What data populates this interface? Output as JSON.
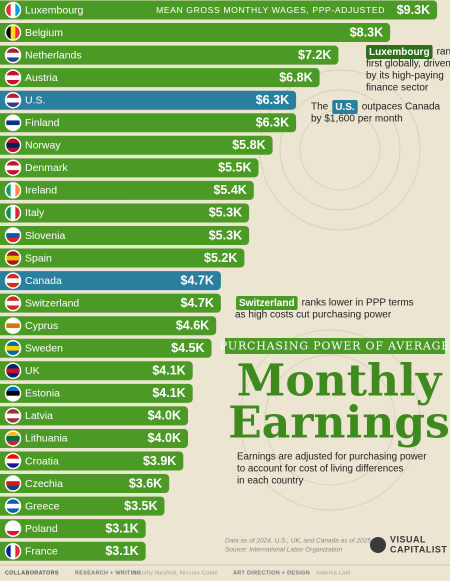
{
  "chart_data": {
    "type": "bar",
    "orientation": "horizontal",
    "subtitle": "MEAN GROSS MONTHLY WAGES, PPP-ADJUSTED",
    "categories": [
      "Luxembourg",
      "Belgium",
      "Netherlands",
      "Austria",
      "U.S.",
      "Finland",
      "Norway",
      "Denmark",
      "Ireland",
      "Italy",
      "Slovenia",
      "Spain",
      "Canada",
      "Switzerland",
      "Cyprus",
      "Sweden",
      "UK",
      "Estonia",
      "Latvia",
      "Lithuania",
      "Croatia",
      "Czechia",
      "Greece",
      "Poland",
      "France"
    ],
    "values": [
      9.3,
      8.3,
      7.2,
      6.8,
      6.3,
      6.3,
      5.8,
      5.5,
      5.4,
      5.3,
      5.3,
      5.2,
      4.7,
      4.7,
      4.6,
      4.5,
      4.1,
      4.1,
      4.0,
      4.0,
      3.9,
      3.6,
      3.5,
      3.1,
      3.1
    ],
    "value_labels": [
      "$9.3K",
      "$8.3K",
      "$7.2K",
      "$6.8K",
      "$6.3K",
      "$6.3K",
      "$5.8K",
      "$5.5K",
      "$5.4K",
      "$5.3K",
      "$5.3K",
      "$5.2K",
      "$4.7K",
      "$4.7K",
      "$4.6K",
      "$4.5K",
      "$4.1K",
      "$4.1K",
      "$4.0K",
      "$4.0K",
      "$3.9K",
      "$3.6K",
      "$3.5K",
      "$3.1K",
      "$3.1K"
    ],
    "color": "#4b9a26",
    "highlight_color": "#2a7f9e",
    "highlight_indices": [
      4,
      12
    ],
    "annotations": [
      {
        "prefix": "",
        "tag": "Luxembourg",
        "lines": [
          "ranks",
          "first globally, driven",
          "by its high-paying",
          "finance sector"
        ]
      },
      {
        "prefix": "The",
        "tag": "U.S.",
        "lines": [
          "outpaces Canada",
          "by $1,600 per month"
        ]
      },
      {
        "prefix": "",
        "tag": "Switzerland",
        "lines": [
          "ranks lower in PPP terms",
          "as high costs cut purchasing power"
        ]
      }
    ],
    "kicker": "PURCHASING POWER OF AVERAGE",
    "title": [
      "Monthly",
      "Earnings"
    ],
    "description": [
      "Earnings are adjusted for purchasing power",
      "to account for cost of living differences",
      "in each country"
    ],
    "note": [
      "Data as of 2024. U.S., UK, and Canada as of 2025.",
      "Source: International Labor Organization"
    ],
    "logo": [
      "VISUAL",
      "CAPITALIST"
    ],
    "footer": [
      "COLLABORATORS",
      "RESEARCH + WRITING",
      "Dorothy Neufeld, Niccolo Conte",
      "ART DIRECTION + DESIGN",
      "Sabrina Lam"
    ]
  }
}
